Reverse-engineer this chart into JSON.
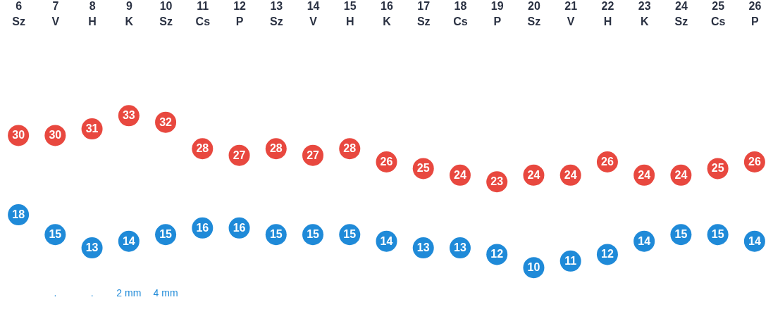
{
  "chart_data": {
    "type": "scatter",
    "categories": [
      "6\nSz",
      "7\nV",
      "8\nH",
      "9\nK",
      "10\nSz",
      "11\nCs",
      "12\nP",
      "13\nSz",
      "14\nV",
      "15\nH",
      "16\nK",
      "17\nSz",
      "18\nCs",
      "19\nP",
      "20\nSz",
      "21\nV",
      "22\nH",
      "23\nK",
      "24\nSz",
      "25\nCs",
      "26\nP"
    ],
    "series": [
      {
        "color": "#e8483f",
        "values": [
          30,
          30,
          31,
          33,
          32,
          28,
          27,
          28,
          27,
          28,
          26,
          25,
          24,
          23,
          24,
          24,
          26,
          24,
          24,
          25,
          26
        ]
      },
      {
        "color": "#1f8ad8",
        "values": [
          18,
          15,
          13,
          14,
          15,
          16,
          16,
          15,
          15,
          15,
          14,
          13,
          13,
          12,
          10,
          11,
          12,
          14,
          15,
          15,
          14
        ]
      }
    ],
    "annotations": [
      ".",
      ".",
      "2 mm",
      "4 mm"
    ],
    "data_labels": true,
    "marker": "circle"
  }
}
